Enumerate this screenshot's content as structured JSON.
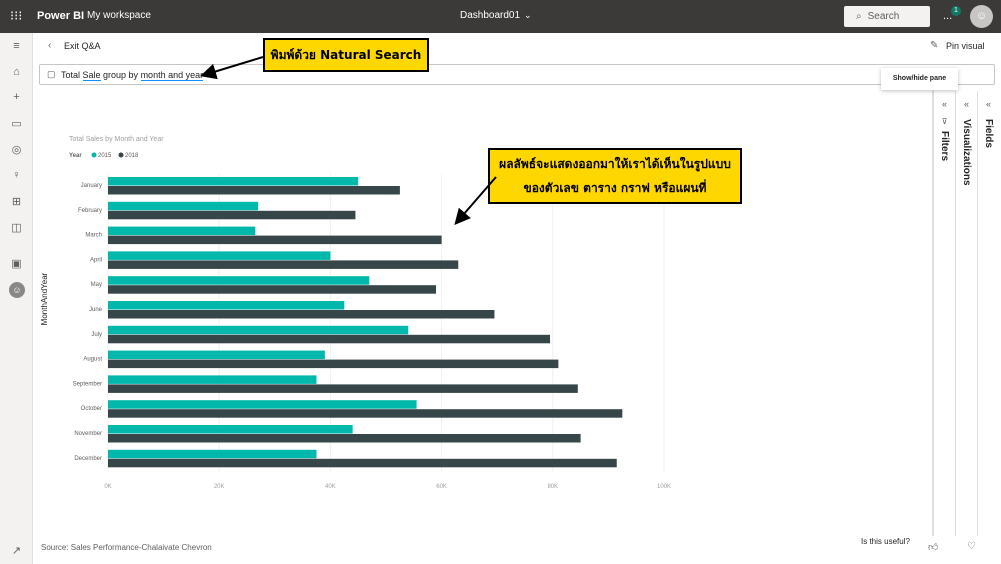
{
  "topbar": {
    "waffle_icon": "waffle-icon",
    "brand": "Power BI",
    "workspace": "My workspace",
    "dashboard": "Dashboard01",
    "search_placeholder": "Search",
    "more": "...",
    "notification_count": "1"
  },
  "leftnav": {
    "items": [
      "hamburger-icon",
      "home-icon",
      "create-icon",
      "browse-icon",
      "data-hub-icon",
      "goals-icon",
      "apps-icon",
      "learn-icon",
      "workspaces-icon",
      "account-icon"
    ]
  },
  "subbar": {
    "exit_label": "Exit Q&A",
    "pin_label": "Pin visual"
  },
  "qa": {
    "text_prefix": "Total ",
    "text_term1": "Sale",
    "text_mid": " group by ",
    "text_term2": "month and year"
  },
  "tooltip": "Show/hide pane",
  "panes": {
    "filters": "Filters",
    "visualizations": "Visualizations",
    "fields": "Fields"
  },
  "callouts": {
    "search_hint": "พิมพ์ด้วย Natural Search",
    "result_hint_line1": "ผลลัพธ์จะแสดงออกมาให้เราได้เห็นในรูปแบบ",
    "result_hint_line2": "ของตัวเลข ตาราง กราฟ หรือแผนที่"
  },
  "footer": {
    "source": "Source: Sales Performance-Chalaivate Chevron",
    "useful": "Is this useful?"
  },
  "chart_data": {
    "type": "bar",
    "orientation": "horizontal",
    "title": "Total Sales by Month and Year",
    "legend_title": "Year",
    "ylabel": "MonthAndYear",
    "xlabel": "",
    "categories": [
      "January",
      "February",
      "March",
      "April",
      "May",
      "June",
      "July",
      "August",
      "September",
      "October",
      "November",
      "December"
    ],
    "series": [
      {
        "name": "2015",
        "color": "#01b8aa",
        "values": [
          45000,
          27000,
          26500,
          40000,
          47000,
          42500,
          54000,
          39000,
          37500,
          55500,
          44000,
          37500
        ]
      },
      {
        "name": "2018",
        "color": "#374649",
        "values": [
          52500,
          44500,
          60000,
          63000,
          59000,
          69500,
          79500,
          81000,
          84500,
          92500,
          85000,
          91500
        ]
      }
    ],
    "xlim": [
      0,
      100000
    ],
    "xticks": [
      "0K",
      "20K",
      "40K",
      "60K",
      "80K",
      "100K"
    ],
    "grid": true,
    "legend_position": "top-left"
  }
}
